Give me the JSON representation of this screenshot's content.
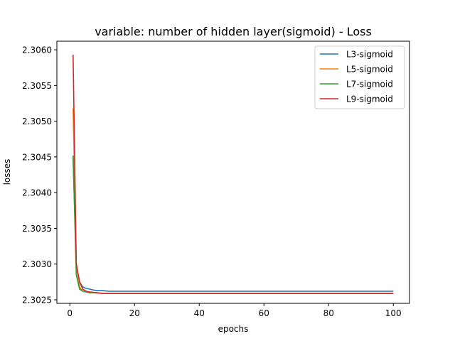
{
  "chart_data": {
    "type": "line",
    "title": "variable: number of hidden layer(sigmoid) - Loss",
    "xlabel": "epochs",
    "ylabel": "losses",
    "xlim": [
      -4,
      105
    ],
    "ylim": [
      2.30245,
      2.30612
    ],
    "x_ticks": [
      0,
      20,
      40,
      60,
      80,
      100
    ],
    "x_tick_labels": [
      "0",
      "20",
      "40",
      "60",
      "80",
      "100"
    ],
    "y_ticks": [
      2.3025,
      2.303,
      2.3035,
      2.304,
      2.3045,
      2.305,
      2.3055,
      2.306
    ],
    "y_tick_labels": [
      "2.3025",
      "2.3030",
      "2.3035",
      "2.3040",
      "2.3045",
      "2.3050",
      "2.3055",
      "2.3060"
    ],
    "grid": false,
    "legend": "top-right",
    "series": [
      {
        "name": "L3-sigmoid",
        "color": "#1f77b4",
        "x": [
          1,
          2,
          3,
          4,
          5,
          6,
          8,
          10,
          12,
          15,
          20,
          25,
          30,
          40,
          50,
          60,
          70,
          80,
          90,
          100
        ],
        "values": [
          2.3045,
          2.303,
          2.30275,
          2.30268,
          2.30266,
          2.30265,
          2.30263,
          2.30263,
          2.30262,
          2.30262,
          2.30262,
          2.30262,
          2.30262,
          2.30262,
          2.30262,
          2.30262,
          2.30262,
          2.30262,
          2.30262,
          2.30262
        ]
      },
      {
        "name": "L5-sigmoid",
        "color": "#ff7f0e",
        "x": [
          1,
          2,
          3,
          4,
          5,
          6,
          8,
          10,
          12,
          15,
          20,
          25,
          30,
          40,
          50,
          60,
          70,
          80,
          90,
          100
        ],
        "values": [
          2.30518,
          2.303,
          2.30268,
          2.30262,
          2.30261,
          2.3026,
          2.3026,
          2.30259,
          2.30259,
          2.30259,
          2.30259,
          2.30259,
          2.30259,
          2.30259,
          2.30259,
          2.30259,
          2.30259,
          2.30259,
          2.30259,
          2.30259
        ]
      },
      {
        "name": "L7-sigmoid",
        "color": "#2ca02c",
        "x": [
          1,
          2,
          3,
          4,
          5,
          6,
          8,
          10,
          12,
          15,
          20,
          25,
          30,
          40,
          50,
          60,
          70,
          80,
          90,
          100
        ],
        "values": [
          2.30452,
          2.30285,
          2.30265,
          2.30262,
          2.30261,
          2.3026,
          2.3026,
          2.30259,
          2.30259,
          2.30259,
          2.30259,
          2.30259,
          2.30259,
          2.30259,
          2.30259,
          2.30259,
          2.30259,
          2.30259,
          2.30259,
          2.30259
        ]
      },
      {
        "name": "L9-sigmoid",
        "color": "#d62728",
        "x": [
          1,
          2,
          3,
          4,
          5,
          6,
          8,
          10,
          12,
          15,
          20,
          25,
          30,
          40,
          50,
          60,
          70,
          80,
          90,
          100
        ],
        "values": [
          2.30593,
          2.303,
          2.30275,
          2.30265,
          2.30262,
          2.30261,
          2.3026,
          2.30259,
          2.30259,
          2.30259,
          2.30259,
          2.30259,
          2.30259,
          2.30259,
          2.30259,
          2.30259,
          2.30259,
          2.30259,
          2.30259,
          2.30259
        ]
      }
    ]
  }
}
